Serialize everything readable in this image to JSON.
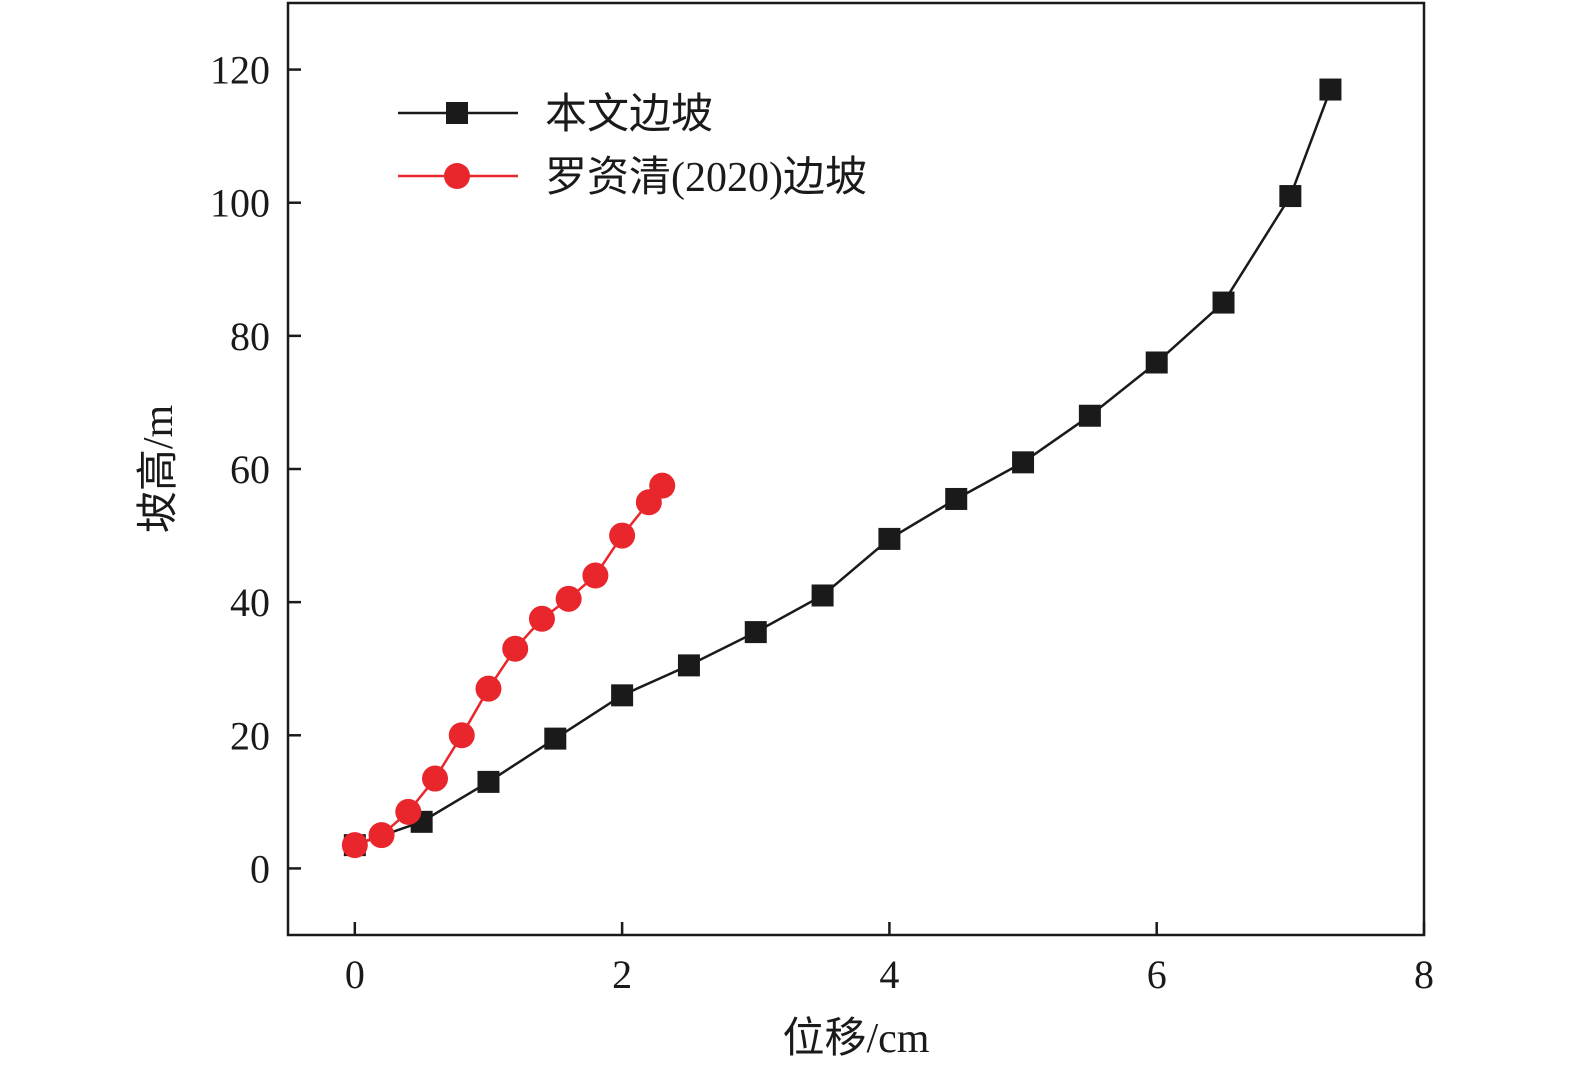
{
  "chart_data": {
    "type": "line",
    "xlabel": "位移/cm",
    "ylabel": "坡高/m",
    "xlim": [
      -0.5,
      8
    ],
    "ylim": [
      -10,
      130
    ],
    "xticks": [
      0,
      2,
      4,
      6,
      8
    ],
    "yticks": [
      0,
      20,
      40,
      60,
      80,
      100,
      120
    ],
    "grid": false,
    "legend_position": "top-left",
    "series": [
      {
        "name": "本文边坡",
        "color": "#1a1a1a",
        "marker": "square",
        "x": [
          0,
          0.5,
          1.0,
          1.5,
          2.0,
          2.5,
          3.0,
          3.5,
          4.0,
          4.5,
          5.0,
          5.5,
          6.0,
          6.5,
          7.0,
          7.3
        ],
        "y": [
          3.5,
          7,
          13,
          19.5,
          26,
          30.5,
          35.5,
          41,
          49.5,
          55.5,
          61,
          68,
          76,
          85,
          101,
          117
        ]
      },
      {
        "name": "罗资清(2020)边坡",
        "color": "#e8262c",
        "marker": "circle",
        "x": [
          0,
          0.2,
          0.4,
          0.6,
          0.8,
          1.0,
          1.2,
          1.4,
          1.6,
          1.8,
          2.0,
          2.2,
          2.3
        ],
        "y": [
          3.5,
          5,
          8.5,
          13.5,
          20,
          27,
          33,
          37.5,
          40.5,
          44,
          50,
          55,
          57.5
        ]
      }
    ]
  }
}
